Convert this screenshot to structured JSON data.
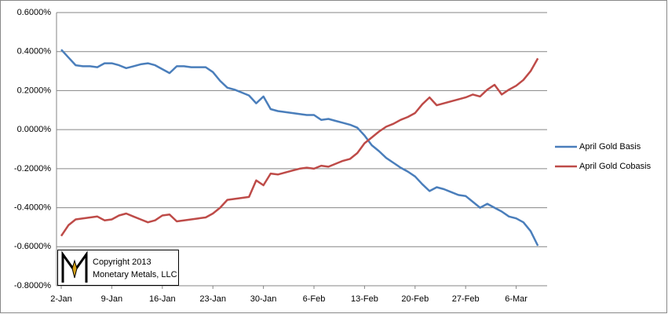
{
  "chart_data": {
    "type": "line",
    "categories": [
      "2-Jan",
      null,
      null,
      null,
      null,
      null,
      null,
      "9-Jan",
      null,
      null,
      null,
      null,
      null,
      null,
      "16-Jan",
      null,
      null,
      null,
      null,
      null,
      null,
      "23-Jan",
      null,
      null,
      null,
      null,
      null,
      null,
      "30-Jan",
      null,
      null,
      null,
      null,
      null,
      null,
      "6-Feb",
      null,
      null,
      null,
      null,
      null,
      null,
      "13-Feb",
      null,
      null,
      null,
      null,
      null,
      null,
      "20-Feb",
      null,
      null,
      null,
      null,
      null,
      null,
      "27-Feb",
      null,
      null,
      null,
      null,
      null,
      null,
      "6-Mar",
      null,
      null,
      null
    ],
    "series": [
      {
        "name": "April Gold Basis",
        "color": "#4a7ebb",
        "values": [
          0.41,
          0.37,
          0.33,
          0.325,
          0.325,
          0.32,
          0.34,
          0.34,
          0.33,
          0.315,
          0.325,
          0.335,
          0.34,
          0.33,
          0.31,
          0.29,
          0.325,
          0.325,
          0.32,
          0.32,
          0.32,
          0.295,
          0.25,
          0.215,
          0.205,
          0.19,
          0.175,
          0.135,
          0.17,
          0.105,
          0.095,
          0.09,
          0.085,
          0.08,
          0.075,
          0.075,
          0.05,
          0.055,
          0.045,
          0.035,
          0.025,
          0.01,
          -0.03,
          -0.08,
          -0.11,
          -0.145,
          -0.17,
          -0.195,
          -0.215,
          -0.24,
          -0.28,
          -0.315,
          -0.295,
          -0.305,
          -0.32,
          -0.335,
          -0.34,
          -0.37,
          -0.4,
          -0.38,
          -0.4,
          -0.42,
          -0.445,
          -0.455,
          -0.475,
          -0.52,
          -0.595
        ]
      },
      {
        "name": "April Gold Cobasis",
        "color": "#be4b48",
        "values": [
          -0.545,
          -0.49,
          -0.46,
          -0.455,
          -0.45,
          -0.445,
          -0.465,
          -0.46,
          -0.44,
          -0.43,
          -0.445,
          -0.46,
          -0.475,
          -0.465,
          -0.44,
          -0.435,
          -0.47,
          -0.465,
          -0.46,
          -0.455,
          -0.45,
          -0.43,
          -0.4,
          -0.36,
          -0.355,
          -0.35,
          -0.345,
          -0.26,
          -0.285,
          -0.225,
          -0.23,
          -0.22,
          -0.21,
          -0.2,
          -0.195,
          -0.2,
          -0.185,
          -0.19,
          -0.175,
          -0.16,
          -0.15,
          -0.12,
          -0.07,
          -0.04,
          -0.01,
          0.015,
          0.03,
          0.05,
          0.065,
          0.085,
          0.13,
          0.165,
          0.125,
          0.135,
          0.145,
          0.155,
          0.165,
          0.18,
          0.17,
          0.205,
          0.23,
          0.18,
          0.205,
          0.225,
          0.255,
          0.3,
          0.365
        ]
      }
    ],
    "ylim": [
      -0.8,
      0.6
    ],
    "yticks": [
      {
        "value": -0.8,
        "label": "-0.8000%"
      },
      {
        "value": -0.6,
        "label": "-0.6000%"
      },
      {
        "value": -0.4,
        "label": "-0.4000%"
      },
      {
        "value": -0.2,
        "label": "-0.2000%"
      },
      {
        "value": 0,
        "label": "0.0000%"
      },
      {
        "value": 0.2,
        "label": "0.2000%"
      },
      {
        "value": 0.4,
        "label": "0.4000%"
      },
      {
        "value": 0.6,
        "label": "0.6000%"
      }
    ],
    "grid": true,
    "legend": "right",
    "annotations": [
      "Copyright 2013",
      "Monetary Metals, LLC"
    ]
  }
}
